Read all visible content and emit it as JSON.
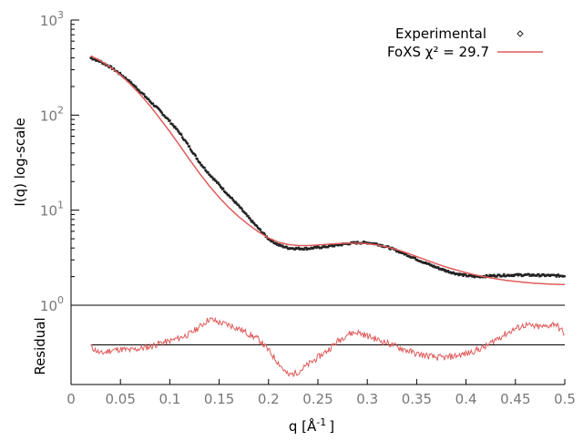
{
  "chart_data": [
    {
      "type": "scatter",
      "panel": "intensity",
      "y_scale": "log",
      "xlim": [
        0,
        0.5
      ],
      "ylim": [
        1,
        1000
      ],
      "ylabel": "I(q) log-scale",
      "y_ticks": [
        {
          "value": 1,
          "base": "10",
          "exp": "0"
        },
        {
          "value": 10,
          "base": "10",
          "exp": "1"
        },
        {
          "value": 100,
          "base": "10",
          "exp": "2"
        },
        {
          "value": 1000,
          "base": "10",
          "exp": "3"
        }
      ],
      "legend_placement": "top-right",
      "series": [
        {
          "name": "Experimental",
          "kind": "points",
          "color": "#222222",
          "x": [
            0.02,
            0.03,
            0.04,
            0.05,
            0.06,
            0.07,
            0.08,
            0.09,
            0.1,
            0.11,
            0.12,
            0.13,
            0.14,
            0.15,
            0.16,
            0.17,
            0.18,
            0.19,
            0.2,
            0.21,
            0.22,
            0.23,
            0.24,
            0.25,
            0.26,
            0.27,
            0.28,
            0.29,
            0.3,
            0.31,
            0.32,
            0.33,
            0.34,
            0.35,
            0.36,
            0.37,
            0.38,
            0.39,
            0.4,
            0.41,
            0.42,
            0.43,
            0.44,
            0.45,
            0.46,
            0.47,
            0.48,
            0.49,
            0.5
          ],
          "y": [
            400,
            365,
            320,
            270,
            222,
            178,
            140,
            111,
            86,
            65,
            46,
            32,
            24,
            18.5,
            14.2,
            11,
            8.3,
            6.4,
            5,
            4.3,
            4,
            3.95,
            3.95,
            4.05,
            4.15,
            4.3,
            4.45,
            4.55,
            4.55,
            4.4,
            4.1,
            3.75,
            3.4,
            3.05,
            2.75,
            2.5,
            2.3,
            2.15,
            2.05,
            2,
            2.02,
            2.05,
            2.07,
            2.08,
            2.08,
            2.07,
            2.06,
            2.05,
            2.04
          ]
        },
        {
          "name": "FoXS χ² = 29.7",
          "kind": "line",
          "color": "#e05b5b",
          "x": [
            0.02,
            0.03,
            0.04,
            0.05,
            0.06,
            0.07,
            0.08,
            0.09,
            0.1,
            0.11,
            0.12,
            0.13,
            0.14,
            0.15,
            0.16,
            0.17,
            0.18,
            0.19,
            0.2,
            0.21,
            0.22,
            0.23,
            0.24,
            0.25,
            0.26,
            0.27,
            0.28,
            0.29,
            0.3,
            0.31,
            0.32,
            0.33,
            0.34,
            0.35,
            0.36,
            0.37,
            0.38,
            0.39,
            0.4,
            0.41,
            0.42,
            0.43,
            0.44,
            0.45,
            0.46,
            0.47,
            0.48,
            0.49,
            0.5
          ],
          "y": [
            420,
            372,
            318,
            265,
            212,
            165,
            125,
            92,
            67,
            48,
            34,
            24.5,
            18,
            13.6,
            10.6,
            8.5,
            7,
            5.9,
            5.1,
            4.6,
            4.35,
            4.25,
            4.25,
            4.3,
            4.38,
            4.45,
            4.5,
            4.5,
            4.45,
            4.3,
            4.1,
            3.85,
            3.55,
            3.25,
            2.98,
            2.73,
            2.52,
            2.35,
            2.2,
            2.08,
            1.98,
            1.9,
            1.83,
            1.78,
            1.74,
            1.7,
            1.68,
            1.66,
            1.65
          ]
        }
      ]
    },
    {
      "type": "line",
      "panel": "residual",
      "xlabel_base": "q [Å",
      "xlabel_exp": "-1",
      "xlabel_tail": "]",
      "ylabel": "Residual",
      "xlim": [
        0,
        0.5
      ],
      "ylim": [
        -1.1,
        1.1
      ],
      "x_ticks": [
        "0",
        "0.05",
        "0.1",
        "0.15",
        "0.2",
        "0.25",
        "0.3",
        "0.35",
        "0.4",
        "0.45",
        "0.5"
      ],
      "zero_line_color": "#000000",
      "series": [
        {
          "kind": "line",
          "color": "#e05b5b",
          "x": [
            0.02,
            0.03,
            0.04,
            0.05,
            0.06,
            0.07,
            0.08,
            0.09,
            0.1,
            0.11,
            0.12,
            0.13,
            0.14,
            0.15,
            0.16,
            0.17,
            0.18,
            0.19,
            0.2,
            0.21,
            0.22,
            0.23,
            0.24,
            0.25,
            0.26,
            0.27,
            0.28,
            0.29,
            0.3,
            0.31,
            0.32,
            0.33,
            0.34,
            0.35,
            0.36,
            0.37,
            0.38,
            0.39,
            0.4,
            0.41,
            0.42,
            0.43,
            0.44,
            0.45,
            0.46,
            0.47,
            0.48,
            0.49,
            0.5
          ],
          "y": [
            -0.05,
            -0.25,
            -0.15,
            -0.12,
            -0.15,
            -0.1,
            -0.05,
            0.05,
            0.1,
            0.2,
            0.3,
            0.5,
            0.72,
            0.62,
            0.55,
            0.45,
            0.3,
            0.15,
            -0.15,
            -0.5,
            -0.85,
            -0.75,
            -0.55,
            -0.35,
            -0.15,
            0.1,
            0.3,
            0.35,
            0.25,
            0.15,
            0.05,
            -0.05,
            -0.15,
            -0.25,
            -0.3,
            -0.35,
            -0.35,
            -0.3,
            -0.25,
            -0.15,
            -0.05,
            0.15,
            0.3,
            0.45,
            0.55,
            0.5,
            0.5,
            0.6,
            0.3
          ]
        }
      ]
    }
  ]
}
